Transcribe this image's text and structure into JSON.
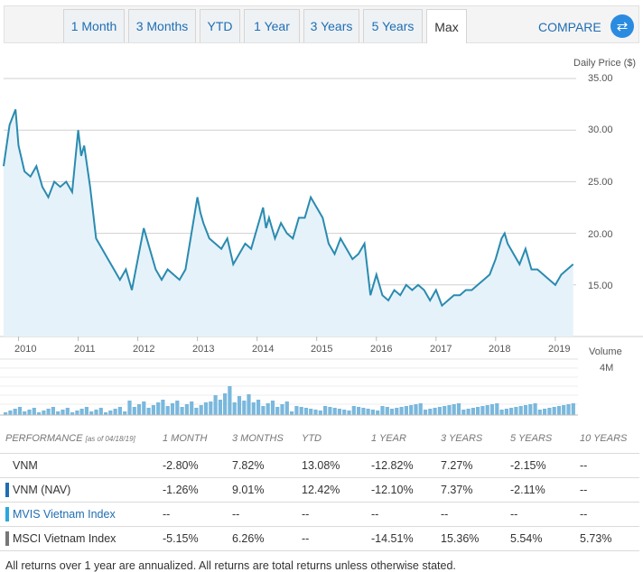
{
  "tabs": [
    "1 Month",
    "3 Months",
    "YTD",
    "1 Year",
    "3 Years",
    "5 Years",
    "Max"
  ],
  "active_tab": "Max",
  "compare_label": "COMPARE",
  "chart": {
    "price_label": "Daily Price ($)",
    "volume_label": "Volume",
    "volume_tick": "4M",
    "y_ticks": [
      "35.00",
      "30.00",
      "25.00",
      "20.00",
      "15.00"
    ],
    "x_ticks": [
      "2010",
      "2011",
      "2012",
      "2013",
      "2014",
      "2015",
      "2016",
      "2017",
      "2018",
      "2019"
    ]
  },
  "chart_data": {
    "type": "line",
    "title": "",
    "ylabel": "Daily Price ($)",
    "ylim": [
      10,
      35
    ],
    "x": [
      2009.75,
      2009.85,
      2009.95,
      2010.0,
      2010.1,
      2010.2,
      2010.3,
      2010.4,
      2010.5,
      2010.6,
      2010.7,
      2010.8,
      2010.9,
      2011.0,
      2011.05,
      2011.1,
      2011.2,
      2011.3,
      2011.4,
      2011.5,
      2011.6,
      2011.7,
      2011.8,
      2011.9,
      2012.0,
      2012.1,
      2012.2,
      2012.3,
      2012.4,
      2012.5,
      2012.6,
      2012.7,
      2012.8,
      2012.9,
      2013.0,
      2013.05,
      2013.1,
      2013.2,
      2013.3,
      2013.4,
      2013.5,
      2013.6,
      2013.7,
      2013.8,
      2013.9,
      2014.0,
      2014.1,
      2014.15,
      2014.2,
      2014.3,
      2014.4,
      2014.5,
      2014.6,
      2014.7,
      2014.8,
      2014.9,
      2015.0,
      2015.1,
      2015.2,
      2015.3,
      2015.4,
      2015.5,
      2015.6,
      2015.7,
      2015.8,
      2015.9,
      2016.0,
      2016.1,
      2016.2,
      2016.3,
      2016.4,
      2016.5,
      2016.6,
      2016.7,
      2016.8,
      2016.9,
      2017.0,
      2017.1,
      2017.2,
      2017.3,
      2017.4,
      2017.5,
      2017.6,
      2017.7,
      2017.8,
      2017.9,
      2018.0,
      2018.1,
      2018.15,
      2018.2,
      2018.3,
      2018.4,
      2018.5,
      2018.6,
      2018.7,
      2018.8,
      2018.9,
      2019.0,
      2019.1,
      2019.2,
      2019.3
    ],
    "series": [
      {
        "name": "VNM",
        "values": [
          26.5,
          30.5,
          32.0,
          28.5,
          26.0,
          25.5,
          26.5,
          24.5,
          23.5,
          25.0,
          24.5,
          25.0,
          24.0,
          30.0,
          27.5,
          28.5,
          24.5,
          19.5,
          18.5,
          17.5,
          16.5,
          15.5,
          16.5,
          14.5,
          17.5,
          20.5,
          18.5,
          16.5,
          15.5,
          16.5,
          16.0,
          15.5,
          16.5,
          20.0,
          23.5,
          22.0,
          21.0,
          19.5,
          19.0,
          18.5,
          19.5,
          17.0,
          18.0,
          19.0,
          18.5,
          20.5,
          22.5,
          20.5,
          21.5,
          19.5,
          21.0,
          20.0,
          19.5,
          21.5,
          21.5,
          23.5,
          22.5,
          21.5,
          19.0,
          18.0,
          19.5,
          18.5,
          17.5,
          18.0,
          19.0,
          14.0,
          16.0,
          14.0,
          13.5,
          14.5,
          14.0,
          15.0,
          14.5,
          15.0,
          14.5,
          13.5,
          14.5,
          13.0,
          13.5,
          14.0,
          14.0,
          14.5,
          14.5,
          15.0,
          15.5,
          16.0,
          17.5,
          19.5,
          20.0,
          19.0,
          18.0,
          17.0,
          18.5,
          16.5,
          16.5,
          16.0,
          15.5,
          15.0,
          16.0,
          16.5,
          17.0
        ]
      }
    ],
    "volume_max": "4M"
  },
  "performance": {
    "header_label": "PERFORMANCE",
    "as_of": "[as of 04/18/19]",
    "columns": [
      "1 MONTH",
      "3 MONTHS",
      "YTD",
      "1 YEAR",
      "3 YEARS",
      "5 YEARS",
      "10 YEARS"
    ],
    "rows": [
      {
        "name": "VNM",
        "marker": "",
        "values": [
          "-2.80%",
          "7.82%",
          "13.08%",
          "-12.82%",
          "7.27%",
          "-2.15%",
          "--"
        ]
      },
      {
        "name": "VNM (NAV)",
        "marker": "#1f6db3",
        "values": [
          "-1.26%",
          "9.01%",
          "12.42%",
          "-12.10%",
          "7.37%",
          "-2.11%",
          "--"
        ]
      },
      {
        "name": "MVIS Vietnam Index",
        "marker": "#29a8e0",
        "values": [
          "--",
          "--",
          "--",
          "--",
          "--",
          "--",
          "--"
        ]
      },
      {
        "name": "MSCI Vietnam Index",
        "marker": "#777777",
        "values": [
          "-5.15%",
          "6.26%",
          "--",
          "-14.51%",
          "15.36%",
          "5.54%",
          "5.73%"
        ]
      }
    ]
  },
  "note": "All returns over 1 year are annualized. All returns are total returns unless otherwise stated.",
  "colors": {
    "line": "#2a8bb0",
    "area": "#e6f2fa",
    "volume": "#7ab8dd",
    "accent": "#1f6db3"
  }
}
